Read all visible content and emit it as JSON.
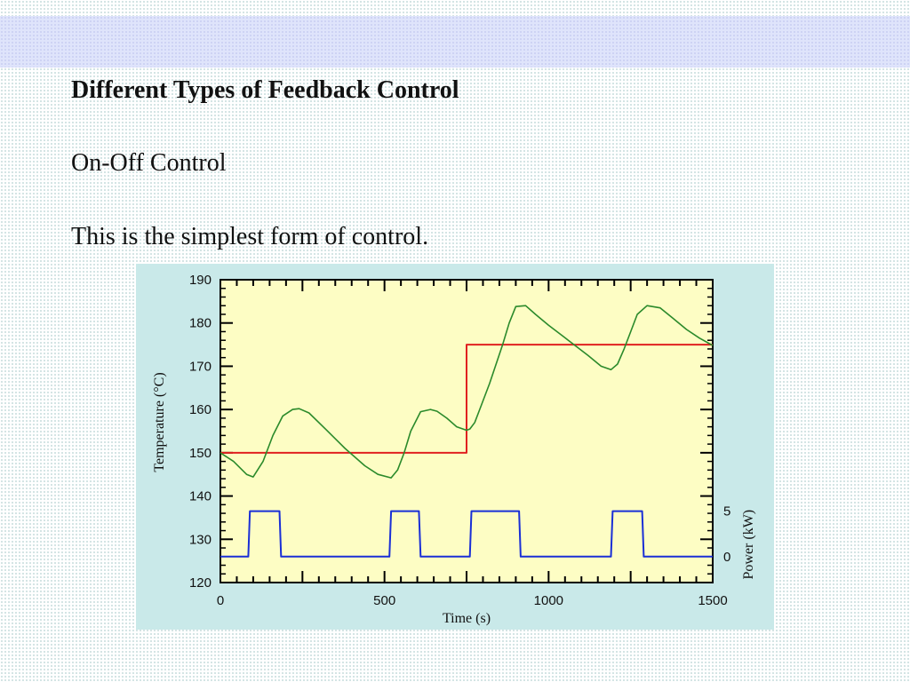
{
  "slide": {
    "title": "Different Types of Feedback Control",
    "subtitle": "On-Off Control",
    "body": "This is the simplest form of control."
  },
  "chart_data": {
    "type": "line",
    "xlabel": "Time (s)",
    "ylabel": "Temperature (°C)",
    "y2label": "Power (kW)",
    "xlim": [
      0,
      1500
    ],
    "ylim": [
      120,
      190
    ],
    "y2_ticks": [
      0,
      5
    ],
    "x_ticks": [
      0,
      500,
      1000,
      1500
    ],
    "y_ticks": [
      120,
      130,
      140,
      150,
      160,
      170,
      180,
      190
    ],
    "grid": false,
    "colors": {
      "plot_bg": "#fdfdc4",
      "setpoint": "#e02020",
      "temperature": "#2b8a2b",
      "power": "#1a2fd6",
      "panel_bg": "#c9e9e9"
    },
    "series": [
      {
        "id": "setpoint",
        "x": [
          0,
          750,
          750,
          1500
        ],
        "y": [
          150,
          150,
          175,
          175
        ]
      },
      {
        "id": "temperature",
        "x": [
          0,
          40,
          80,
          100,
          130,
          160,
          190,
          220,
          240,
          270,
          320,
          380,
          440,
          480,
          520,
          540,
          560,
          580,
          610,
          640,
          660,
          690,
          720,
          750,
          760,
          775,
          790,
          820,
          860,
          880,
          900,
          930,
          960,
          1000,
          1060,
          1120,
          1160,
          1190,
          1210,
          1230,
          1250,
          1270,
          1300,
          1340,
          1380,
          1420,
          1460,
          1500
        ],
        "y": [
          150,
          148,
          145,
          144.4,
          148,
          154,
          158.5,
          160,
          160.2,
          159.2,
          155.5,
          151,
          147,
          145,
          144.2,
          146,
          150,
          155,
          159.5,
          160,
          159.6,
          158,
          156,
          155.2,
          155.5,
          157,
          160,
          166,
          175,
          180,
          183.8,
          184,
          182,
          179.5,
          176,
          172.5,
          170,
          169.2,
          170.5,
          174,
          178,
          182,
          184,
          183.5,
          181,
          178.5,
          176.5,
          174.8
        ]
      },
      {
        "id": "power",
        "unit_axis": "y2",
        "x": [
          0,
          85,
          90,
          180,
          185,
          515,
          520,
          605,
          610,
          760,
          765,
          910,
          915,
          1190,
          1195,
          1285,
          1290,
          1500
        ],
        "y": [
          0,
          0,
          5,
          5,
          0,
          0,
          5,
          5,
          0,
          0,
          5,
          5,
          0,
          0,
          5,
          5,
          0,
          0
        ]
      }
    ]
  }
}
